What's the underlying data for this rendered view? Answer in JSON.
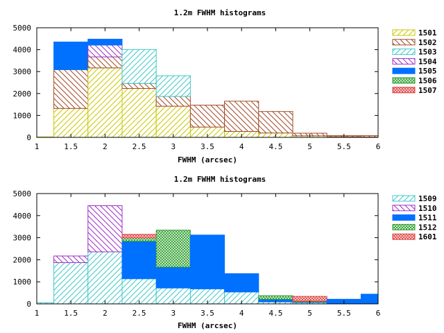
{
  "chart_data": [
    {
      "type": "bar",
      "stacked": true,
      "title": "1.2m FWHM histograms",
      "xlabel": "FWHM (arcsec)",
      "ylabel": "",
      "xlim": [
        1,
        6
      ],
      "ylim": [
        0,
        5000
      ],
      "xticks": [
        "1",
        "1.5",
        "2",
        "2.5",
        "3",
        "3.5",
        "4",
        "4.5",
        "5",
        "5.5",
        "6"
      ],
      "yticks": [
        "0",
        "1000",
        "2000",
        "3000",
        "4000",
        "5000"
      ],
      "grid": false,
      "legend": "right",
      "bin_centers": [
        1,
        1.5,
        2,
        2.5,
        3,
        3.5,
        4,
        4.5,
        5,
        5.5,
        6
      ],
      "series": [
        {
          "name": "1501",
          "color": "#c8c800",
          "pattern": "diag-right",
          "values": [
            20,
            1320,
            3170,
            2230,
            1420,
            470,
            270,
            200,
            70,
            30,
            20
          ]
        },
        {
          "name": "1502",
          "color": "#a04a28",
          "pattern": "diag-left",
          "values": [
            0,
            1770,
            500,
            230,
            450,
            1000,
            1380,
            980,
            120,
            50,
            60
          ]
        },
        {
          "name": "1503",
          "color": "#40c8c8",
          "pattern": "diag-right",
          "values": [
            0,
            0,
            0,
            1550,
            940,
            0,
            0,
            0,
            0,
            0,
            0
          ]
        },
        {
          "name": "1504",
          "color": "#9c30c8",
          "pattern": "diag-left",
          "values": [
            0,
            0,
            540,
            0,
            0,
            0,
            0,
            0,
            0,
            0,
            0
          ]
        },
        {
          "name": "1505",
          "color": "#0070ff",
          "pattern": "solid",
          "values": [
            0,
            1260,
            270,
            0,
            0,
            0,
            0,
            0,
            0,
            0,
            0
          ]
        },
        {
          "name": "1506",
          "color": "#30a030",
          "pattern": "cross",
          "values": [
            0,
            0,
            0,
            0,
            0,
            0,
            0,
            0,
            0,
            0,
            0
          ]
        },
        {
          "name": "1507",
          "color": "#e04040",
          "pattern": "cross",
          "values": [
            0,
            0,
            0,
            0,
            0,
            0,
            0,
            0,
            0,
            0,
            0
          ]
        }
      ]
    },
    {
      "type": "bar",
      "stacked": true,
      "title": "1.2m FWHM histograms",
      "xlabel": "FWHM (arcsec)",
      "ylabel": "",
      "xlim": [
        1,
        6
      ],
      "ylim": [
        0,
        5000
      ],
      "xticks": [
        "1",
        "1.5",
        "2",
        "2.5",
        "3",
        "3.5",
        "4",
        "4.5",
        "5",
        "5.5",
        "6"
      ],
      "yticks": [
        "0",
        "1000",
        "2000",
        "3000",
        "4000",
        "5000"
      ],
      "grid": false,
      "legend": "right",
      "bin_centers": [
        1,
        1.5,
        2,
        2.5,
        3,
        3.5,
        4,
        4.5,
        5,
        5.5,
        6
      ],
      "series": [
        {
          "name": "1509",
          "color": "#40c8c8",
          "pattern": "diag-right",
          "values": [
            50,
            1870,
            2360,
            1140,
            720,
            680,
            540,
            90,
            60,
            30,
            0
          ]
        },
        {
          "name": "1510",
          "color": "#9c30c8",
          "pattern": "diag-left",
          "values": [
            0,
            300,
            2090,
            0,
            0,
            0,
            0,
            0,
            0,
            0,
            0
          ]
        },
        {
          "name": "1511",
          "color": "#0070ff",
          "pattern": "solid",
          "values": [
            0,
            0,
            0,
            1700,
            950,
            2440,
            830,
            120,
            30,
            180,
            440
          ]
        },
        {
          "name": "1512",
          "color": "#30a030",
          "pattern": "cross",
          "values": [
            0,
            0,
            0,
            150,
            1670,
            0,
            0,
            160,
            30,
            0,
            0
          ]
        },
        {
          "name": "1601",
          "color": "#e04040",
          "pattern": "cross",
          "values": [
            0,
            0,
            0,
            160,
            0,
            0,
            0,
            0,
            220,
            0,
            0
          ]
        }
      ]
    }
  ]
}
